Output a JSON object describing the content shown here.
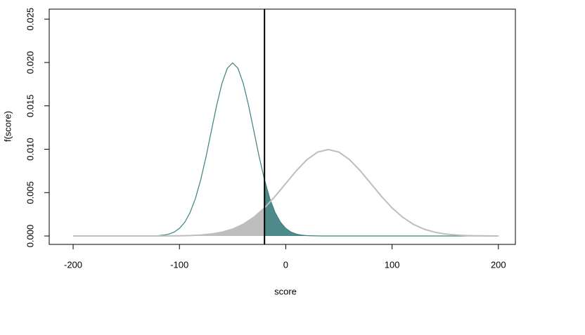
{
  "chart_data": {
    "type": "line",
    "x_label": "score",
    "y_label": "f(score)",
    "xlim": [
      -222.5,
      216
    ],
    "ylim": [
      -0.00097,
      0.02615
    ],
    "xticks": [
      -200,
      -100,
      0,
      100,
      200
    ],
    "yticks": [
      {
        "value": 0,
        "label": "0.000"
      },
      {
        "value": 0.005,
        "label": "0.005"
      },
      {
        "value": 0.01,
        "label": "0.010"
      },
      {
        "value": 0.015,
        "label": "0.015"
      },
      {
        "value": 0.02,
        "label": "0.020"
      },
      {
        "value": 0.025,
        "label": "0.025"
      }
    ],
    "vline": -20,
    "series": [
      {
        "color": "#3d8080",
        "fill": "#4e8a8a",
        "shade": "above",
        "x": [
          -200,
          -135,
          -130,
          -125,
          -120,
          -115,
          -110,
          -105,
          -100,
          -95,
          -90,
          -85,
          -80,
          -75,
          -70,
          -65,
          -60,
          -55,
          -50,
          -45,
          -40,
          -35,
          -30,
          -25,
          -20,
          -15,
          -10,
          -5,
          0,
          5,
          10,
          15,
          20,
          25,
          30,
          35,
          200
        ],
        "values": [
          0,
          0,
          1e-05,
          2e-05,
          4e-05,
          0.0001,
          0.00022,
          0.00045,
          0.00088,
          0.00159,
          0.0027,
          0.00431,
          0.00648,
          0.00913,
          0.0121,
          0.01506,
          0.0176,
          0.01933,
          0.01995,
          0.01933,
          0.0176,
          0.01506,
          0.0121,
          0.00913,
          0.00648,
          0.00431,
          0.0027,
          0.00159,
          0.00088,
          0.00045,
          0.00022,
          0.0001,
          4e-05,
          2e-05,
          1e-05,
          0,
          0
        ]
      },
      {
        "color": "#bebebe",
        "fill": "#bebebe",
        "shade": "below",
        "x": [
          -200,
          -190,
          -180,
          -170,
          -160,
          -150,
          -140,
          -130,
          -120,
          -110,
          -100,
          -90,
          -80,
          -70,
          -60,
          -50,
          -40,
          -30,
          -20,
          -10,
          0,
          10,
          20,
          30,
          40,
          50,
          60,
          70,
          80,
          90,
          100,
          110,
          120,
          130,
          140,
          150,
          160,
          170,
          180,
          190,
          200
        ],
        "values": [
          0,
          0,
          0,
          0,
          0,
          0,
          0,
          0,
          0,
          1e-05,
          2e-05,
          5e-05,
          0.00011,
          0.00023,
          0.00044,
          0.00079,
          0.00135,
          0.00216,
          0.00324,
          0.00457,
          0.00605,
          0.00753,
          0.0088,
          0.00967,
          0.00997,
          0.00967,
          0.0088,
          0.00753,
          0.00605,
          0.00457,
          0.00324,
          0.00216,
          0.00135,
          0.00079,
          0.00044,
          0.00023,
          0.00011,
          5e-05,
          2e-05,
          1e-05,
          0
        ]
      }
    ]
  }
}
